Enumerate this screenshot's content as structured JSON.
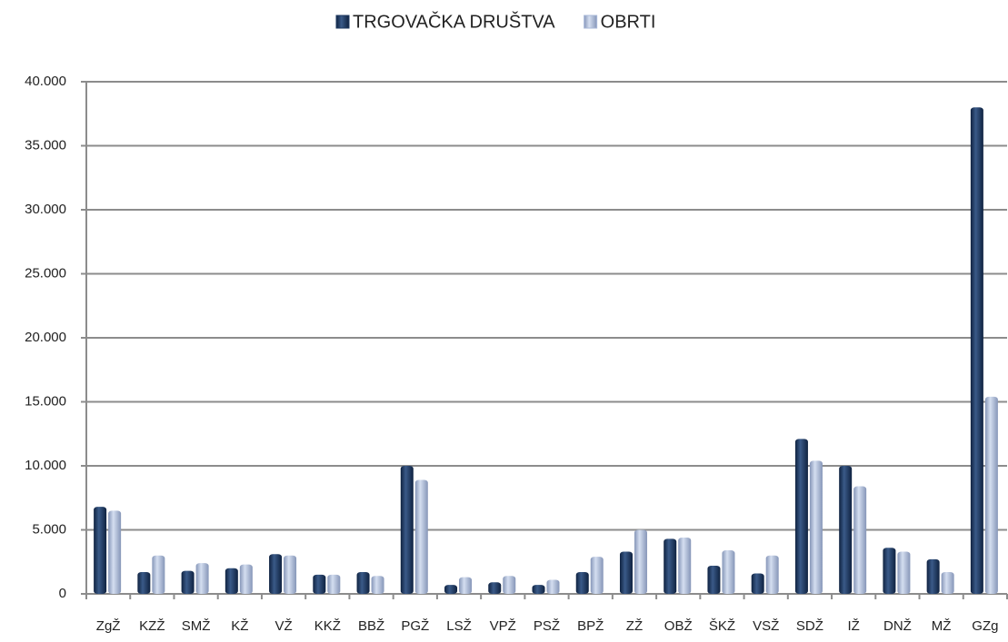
{
  "chart_data": {
    "type": "bar",
    "categories": [
      "ZgŽ",
      "KZŽ",
      "SMŽ",
      "KŽ",
      "VŽ",
      "KKŽ",
      "BBŽ",
      "PGŽ",
      "LSŽ",
      "VPŽ",
      "PSŽ",
      "BPŽ",
      "ZŽ",
      "OBŽ",
      "ŠKŽ",
      "VSŽ",
      "SDŽ",
      "IŽ",
      "DNŽ",
      "MŽ",
      "GZg"
    ],
    "series": [
      {
        "name": "TRGOVAČKA DRUŠTVA",
        "color": "#1f3a60",
        "values": [
          6800,
          1700,
          1800,
          2000,
          3100,
          1500,
          1700,
          10000,
          700,
          900,
          700,
          1700,
          3300,
          4300,
          2200,
          1600,
          12100,
          10000,
          3600,
          2700,
          38000
        ]
      },
      {
        "name": "OBRTI",
        "color": "#a8b8d8",
        "values": [
          6500,
          3000,
          2400,
          2300,
          3000,
          1500,
          1400,
          8900,
          1300,
          1400,
          1100,
          2900,
          5000,
          4400,
          3400,
          3000,
          10400,
          8400,
          3300,
          1700,
          15400
        ]
      }
    ],
    "ylim": [
      0,
      40000
    ],
    "yticks": [
      0,
      {
        "value": 5000,
        "label": "5.000"
      },
      {
        "value": 10000,
        "label": "10.000"
      },
      {
        "value": 15000,
        "label": "15.000"
      },
      {
        "value": 20000,
        "label": "20.000"
      },
      {
        "value": 25000,
        "label": "25.000"
      },
      {
        "value": 30000,
        "label": "30.000"
      },
      {
        "value": 35000,
        "label": "35.000"
      },
      {
        "value": 40000,
        "label": "40.000"
      }
    ],
    "grid": true,
    "legend": "top"
  }
}
